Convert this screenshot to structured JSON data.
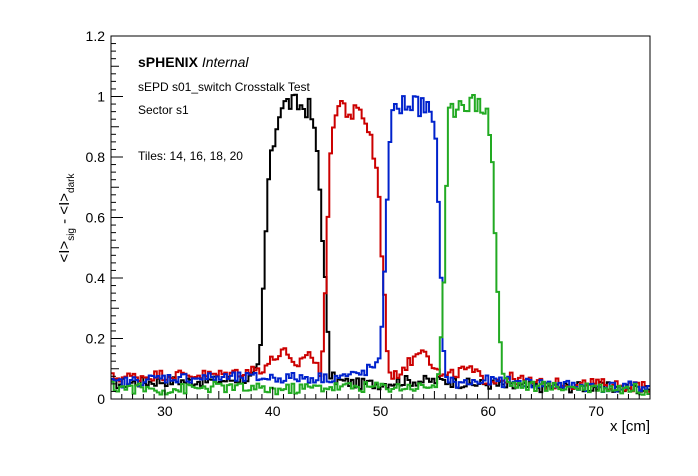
{
  "chart_data": {
    "type": "line",
    "style": "step-histogram",
    "xlabel": "x [cm]",
    "ylabel_parts": [
      "<I>",
      "sig",
      " - <I>",
      "dark"
    ],
    "xlim": [
      25,
      75
    ],
    "ylim": [
      0,
      1.2
    ],
    "x_ticks": [
      30,
      40,
      50,
      60,
      70
    ],
    "y_ticks": [
      0,
      0.2,
      0.4,
      0.6,
      0.8,
      1,
      1.2
    ],
    "annotations": {
      "experiment": "sPHENIX",
      "status": "Internal",
      "test_name": "sEPD s01_switch Crosstalk Test",
      "sector": "Sector s1",
      "tiles": "Tiles: 14, 16, 18, 20"
    },
    "grid": false,
    "legend": "none",
    "series": [
      {
        "color": "#000000",
        "x": [
          25,
          30,
          35,
          38,
          38.8,
          39.6,
          40.2,
          40.7,
          41.5,
          42.5,
          43.5,
          44.2,
          44.8,
          45.3,
          46,
          48,
          50,
          52,
          54,
          56,
          58,
          60,
          62,
          65,
          70,
          75
        ],
        "y": [
          0.05,
          0.06,
          0.06,
          0.07,
          0.11,
          0.72,
          0.87,
          0.97,
          0.98,
          0.97,
          0.96,
          0.8,
          0.45,
          0.08,
          0.06,
          0.05,
          0.05,
          0.06,
          0.06,
          0.06,
          0.05,
          0.05,
          0.04,
          0.04,
          0.04,
          0.03
        ]
      },
      {
        "color": "#cc0000",
        "x": [
          25,
          30,
          35,
          39,
          41,
          42,
          43.3,
          44.5,
          45,
          45.5,
          46.3,
          47.3,
          48.5,
          49.2,
          49.8,
          50.2,
          50.6,
          51,
          52,
          53,
          54,
          55,
          56,
          58,
          60,
          62,
          65,
          70,
          75
        ],
        "y": [
          0.07,
          0.08,
          0.08,
          0.1,
          0.16,
          0.1,
          0.16,
          0.08,
          0.45,
          0.92,
          0.98,
          0.94,
          0.94,
          0.85,
          0.72,
          0.45,
          0.18,
          0.06,
          0.1,
          0.13,
          0.18,
          0.1,
          0.07,
          0.1,
          0.06,
          0.07,
          0.05,
          0.05,
          0.04
        ]
      },
      {
        "color": "#0022cc",
        "x": [
          25,
          30,
          35,
          40,
          45,
          48,
          50,
          50.4,
          50.8,
          51.3,
          52.5,
          53.5,
          54.5,
          55.1,
          55.5,
          55.9,
          56.3,
          57,
          60,
          65,
          70,
          75
        ],
        "y": [
          0.05,
          0.07,
          0.07,
          0.07,
          0.07,
          0.08,
          0.12,
          0.45,
          0.86,
          0.96,
          0.98,
          0.97,
          0.96,
          0.85,
          0.55,
          0.12,
          0.06,
          0.05,
          0.06,
          0.05,
          0.04,
          0.04
        ]
      },
      {
        "color": "#22aa22",
        "x": [
          25,
          30,
          35,
          40,
          45,
          50,
          54,
          55.3,
          55.8,
          56.3,
          57.3,
          58.5,
          59.7,
          60.3,
          60.8,
          61.3,
          62,
          65,
          70,
          75
        ],
        "y": [
          0.04,
          0.03,
          0.04,
          0.03,
          0.04,
          0.04,
          0.04,
          0.05,
          0.27,
          0.93,
          0.99,
          0.98,
          0.97,
          0.86,
          0.4,
          0.08,
          0.05,
          0.04,
          0.04,
          0.03
        ]
      }
    ]
  }
}
